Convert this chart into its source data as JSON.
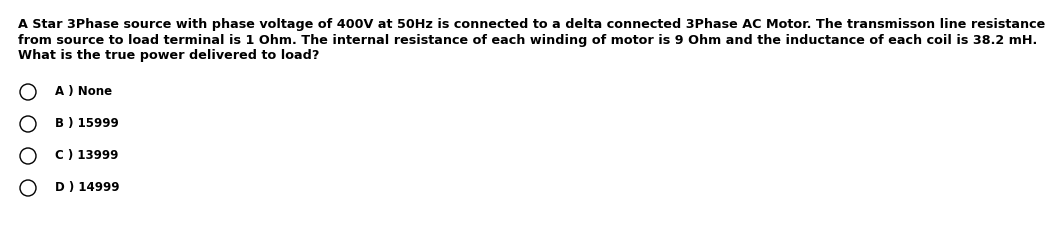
{
  "background_color": "#ffffff",
  "question_lines": [
    "A Star 3Phase source with phase voltage of 400V at 50Hz is connected to a delta connected 3Phase AC Motor. The transmisson line resistance",
    "from source to load terminal is 1 Ohm. The internal resistance of each winding of motor is 9 Ohm and the inductance of each coil is 38.2 mH.",
    "What is the true power delivered to load?"
  ],
  "options": [
    "A ) None",
    "B ) 15999",
    "C ) 13999",
    "D ) 14999"
  ],
  "text_color": "#000000",
  "question_fontsize": 9.2,
  "option_fontsize": 8.5,
  "circle_linewidth": 1.0
}
